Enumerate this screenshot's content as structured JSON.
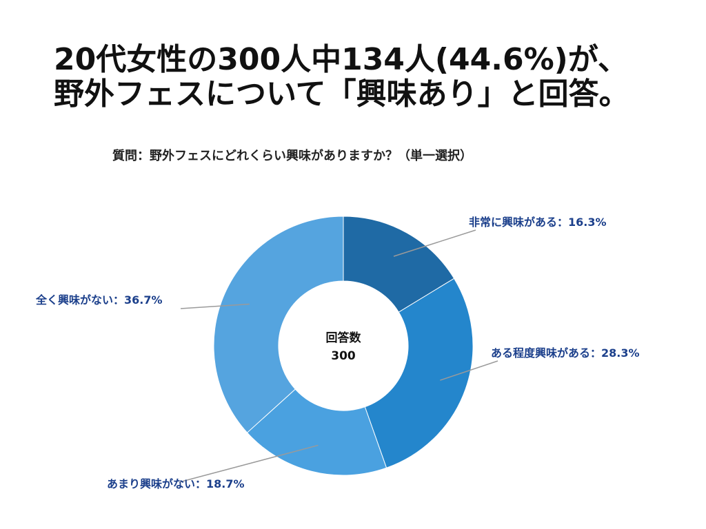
{
  "title": {
    "line1": "20代女性の300人中134人(44.6%)が、",
    "line2": "野外フェスについて「興味あり」と回答。"
  },
  "question": "質問：野外フェスにどれくらい興味がありますか？（単一選択）",
  "center": {
    "label": "回答数",
    "value": "300"
  },
  "chart_data": {
    "type": "pie",
    "donut": true,
    "categories": [
      "非常に興味がある",
      "ある程度興味がある",
      "あまり興味がない",
      "全く興味がない"
    ],
    "values": [
      16.3,
      28.3,
      18.7,
      36.7
    ],
    "labels": [
      "非常に興味がある：16.3%",
      "ある程度興味がある：28.3%",
      "あまり興味がない：18.7%",
      "全く興味がない：36.7%"
    ],
    "colors": [
      "#1f6aa5",
      "#2486cc",
      "#4aa1e0",
      "#55a4df"
    ],
    "label_color": "#1b3f8b",
    "leader_color": "#9a9a9a",
    "total": 300
  }
}
